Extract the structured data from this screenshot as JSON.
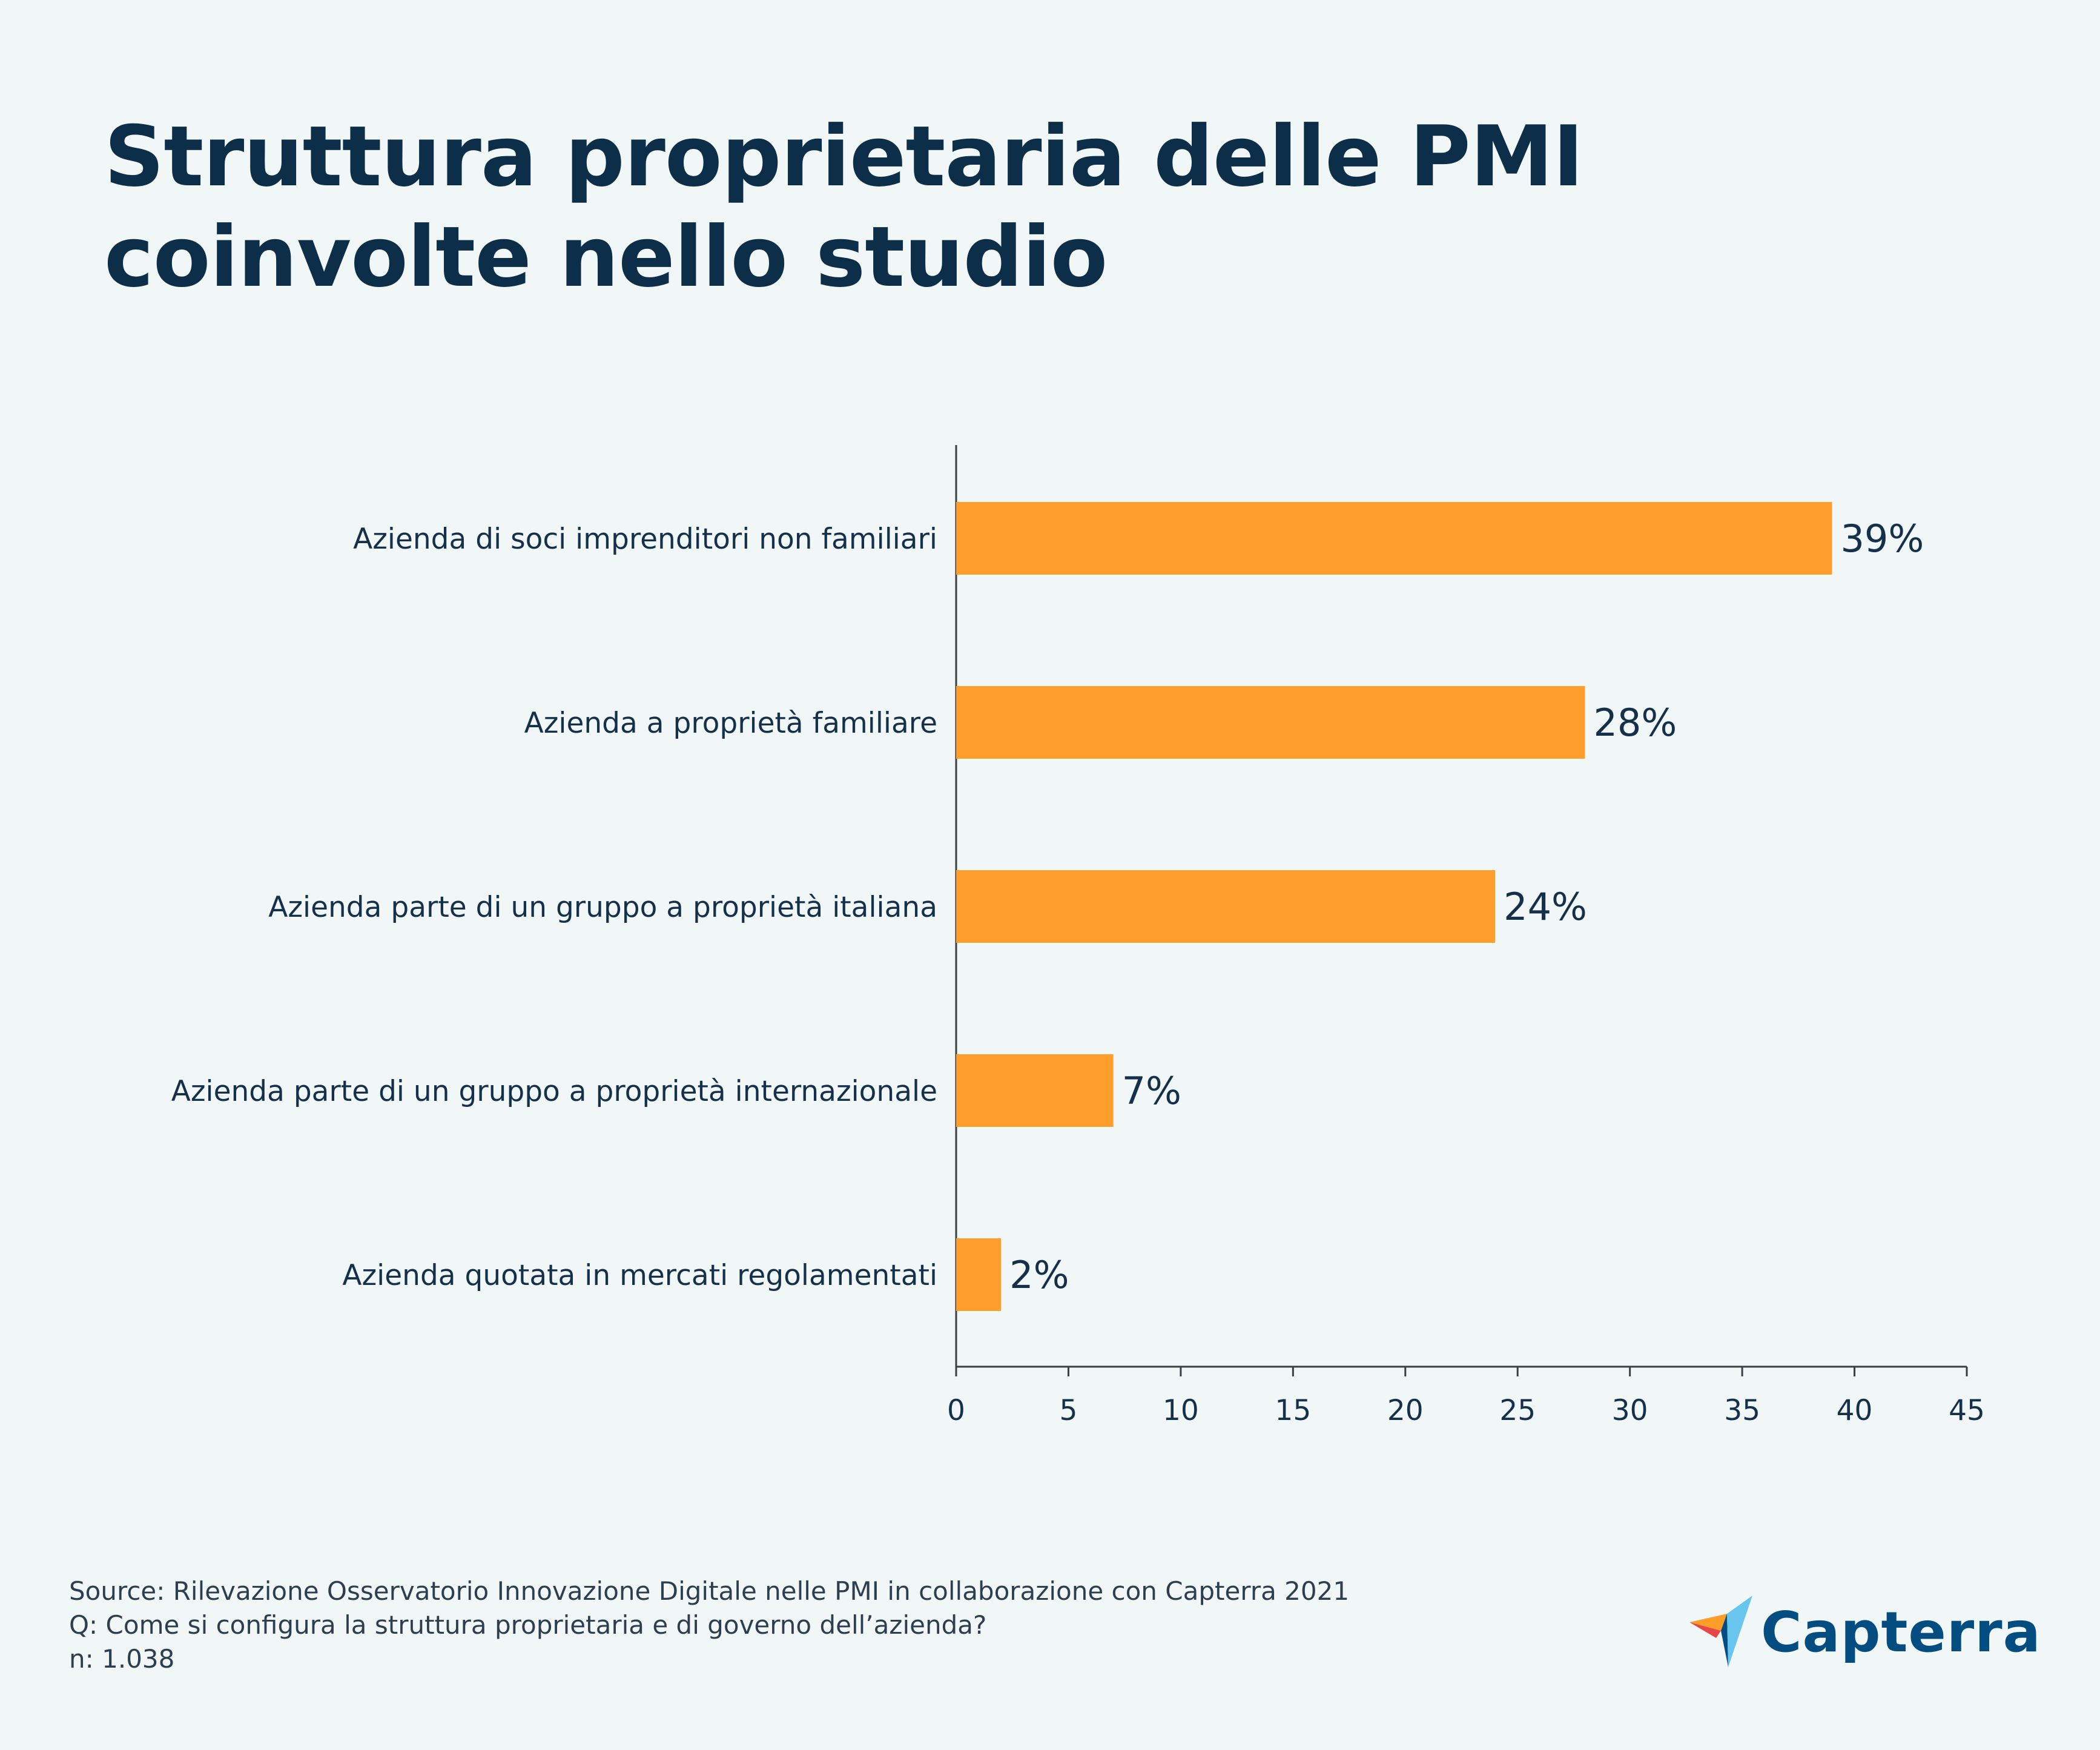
{
  "title": "Struttura proprietaria delle PMI coinvolte nello studio",
  "chart_data": {
    "type": "bar",
    "orientation": "horizontal",
    "title": "Struttura proprietaria delle PMI coinvolte nello studio",
    "categories": [
      "Azienda di soci imprenditori non familiari",
      "Azienda a proprietà familiare",
      "Azienda parte di un gruppo a proprietà italiana",
      "Azienda parte di un gruppo a proprietà internazionale",
      "Azienda quotata in mercati regolamentati"
    ],
    "values": [
      39,
      28,
      24,
      7,
      2
    ],
    "data_labels": [
      "39%",
      "28%",
      "24%",
      "7%",
      "2%"
    ],
    "xlim": [
      0,
      45
    ],
    "xticks": [
      "0",
      "5",
      "10",
      "15",
      "20",
      "25",
      "30",
      "35",
      "40",
      "45"
    ],
    "xlabel": "",
    "ylabel": "",
    "grid": false,
    "bar_color": "#ff9e2c"
  },
  "footer": {
    "source": "Source: Rilevazione Osservatorio Innovazione Digitale nelle PMI in collaborazione con Capterra 2021",
    "question": "Q: Come si configura la struttura proprietaria e di governo dell’azienda?",
    "n": "n: 1.038"
  },
  "logo": {
    "text": "Capterra",
    "icon": "capterra-arrow-icon"
  }
}
